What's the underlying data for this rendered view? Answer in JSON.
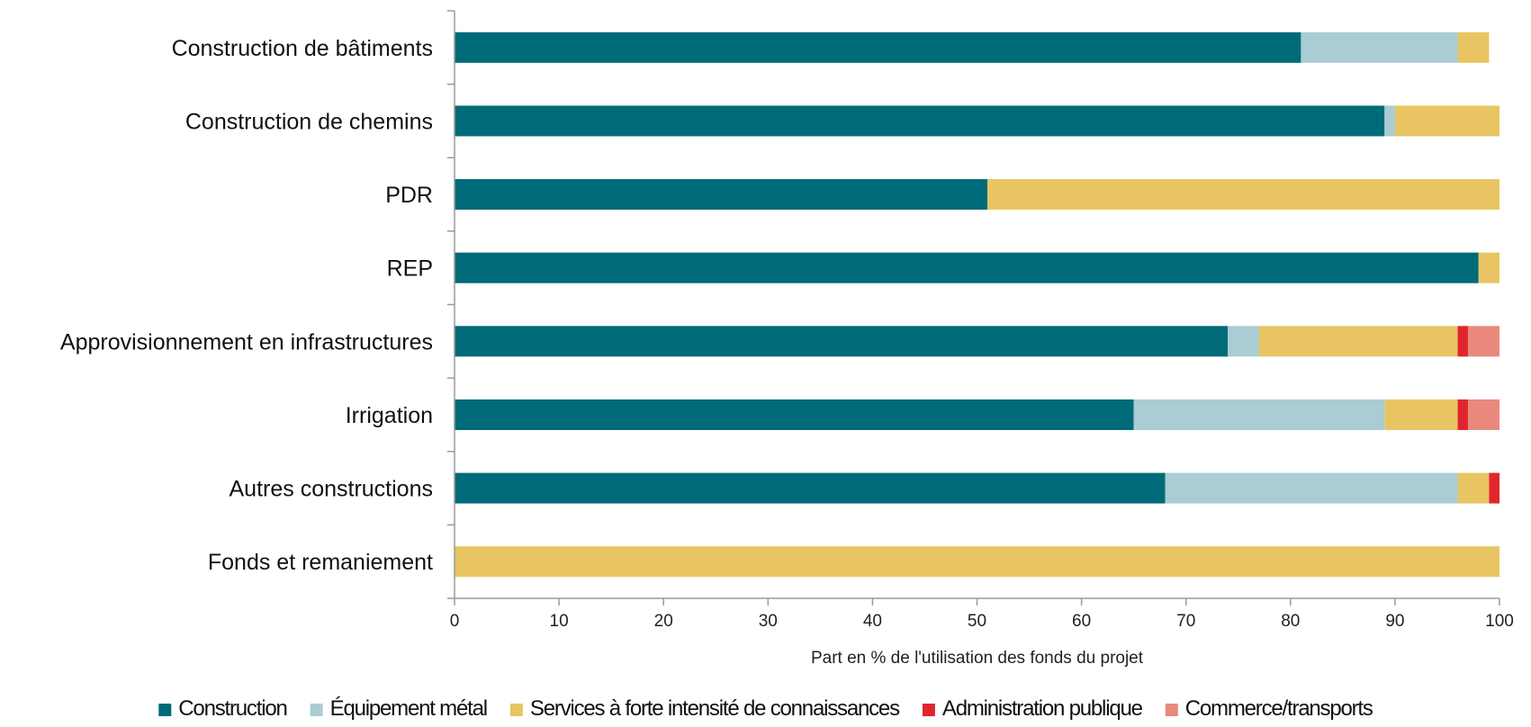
{
  "chart_data": {
    "type": "bar",
    "orientation": "horizontal",
    "stacked": true,
    "categories": [
      "Construction de bâtiments",
      "Construction de chemins",
      "PDR",
      "REP",
      "Approvisionnement en infrastructures",
      "Irrigation",
      "Autres constructions",
      "Fonds et remaniement"
    ],
    "series": [
      {
        "name": "Construction",
        "color": "#006b78",
        "values": [
          81,
          89,
          51,
          98,
          74,
          65,
          68,
          0
        ]
      },
      {
        "name": "Équipement métal",
        "color": "#a9cdd3",
        "values": [
          15,
          1,
          0,
          0,
          3,
          24,
          28,
          0
        ]
      },
      {
        "name": "Services à forte intensité de connaissances",
        "color": "#e8c562",
        "values": [
          3,
          10,
          49,
          2,
          19,
          7,
          3,
          100
        ]
      },
      {
        "name": "Administration publique",
        "color": "#e0262c",
        "values": [
          0,
          0,
          0,
          0,
          1,
          1,
          1,
          0
        ]
      },
      {
        "name": "Commerce/transports",
        "color": "#e8897c",
        "values": [
          0,
          0,
          0,
          0,
          3,
          3,
          0,
          0
        ]
      }
    ],
    "xlabel": "Part en % de l'utilisation des fonds du projet",
    "ylabel": "",
    "xlim": [
      0,
      100
    ],
    "xticks": [
      "0",
      "10",
      "20",
      "30",
      "40",
      "50",
      "60",
      "70",
      "80",
      "90",
      "100"
    ],
    "grid": false,
    "legend_position": "bottom"
  }
}
